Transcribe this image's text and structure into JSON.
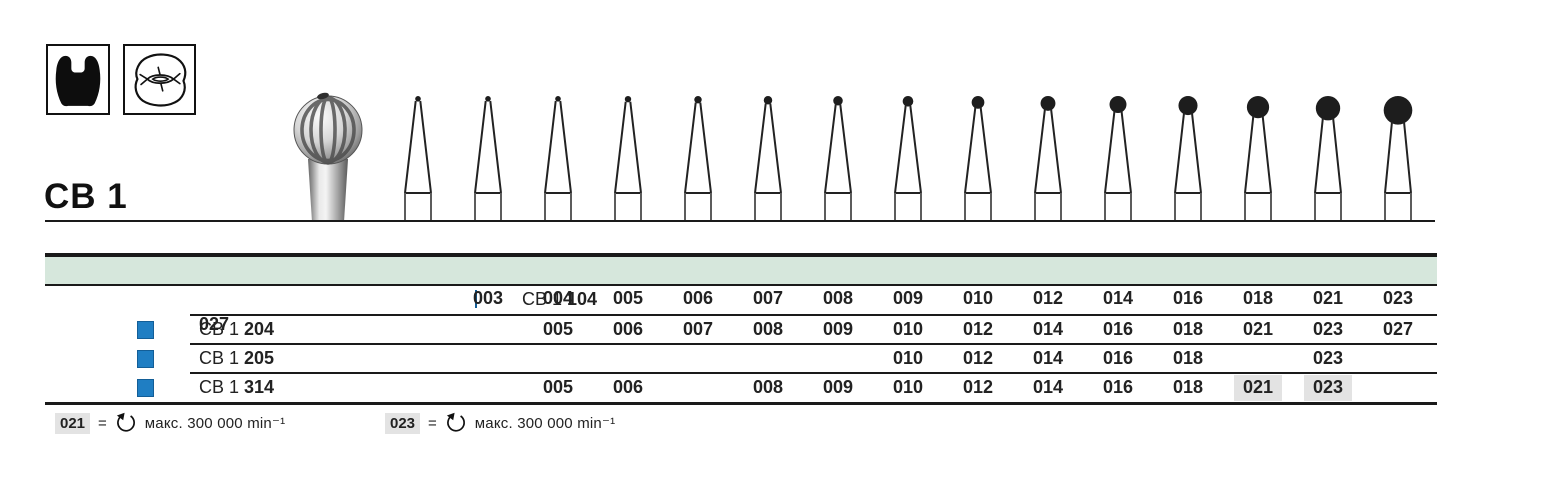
{
  "series": {
    "label": "CB 1"
  },
  "legend_icons": [
    {
      "name": "tooth-crown-icon"
    },
    {
      "name": "occlusal-surface-icon"
    }
  ],
  "table": {
    "sizes": [
      "003",
      "004",
      "005",
      "006",
      "007",
      "008",
      "009",
      "010",
      "012",
      "014",
      "016",
      "018",
      "021",
      "023",
      "027"
    ],
    "rows": [
      {
        "prefix": "CB 1",
        "code": "104",
        "available": [
          "003",
          "004",
          "005",
          "006",
          "007",
          "008",
          "009",
          "010",
          "012",
          "014",
          "016",
          "018",
          "021",
          "023",
          "027"
        ],
        "highlighted": []
      },
      {
        "prefix": "CB 1",
        "code": "204",
        "available": [
          "005",
          "006",
          "007",
          "008",
          "009",
          "010",
          "012",
          "014",
          "016",
          "018",
          "021",
          "023",
          "027"
        ],
        "highlighted": []
      },
      {
        "prefix": "CB 1",
        "code": "205",
        "available": [
          "010",
          "012",
          "014",
          "016",
          "018",
          "023"
        ],
        "highlighted": []
      },
      {
        "prefix": "CB 1",
        "code": "314",
        "available": [
          "005",
          "006",
          "008",
          "009",
          "010",
          "012",
          "014",
          "016",
          "018",
          "021",
          "023"
        ],
        "highlighted": [
          "021",
          "023"
        ]
      }
    ]
  },
  "footnotes": [
    {
      "size": "021",
      "eq": "=",
      "note": "макс. 300 000 min⁻¹"
    },
    {
      "size": "023",
      "eq": "=",
      "note": "макс. 300 000 min⁻¹"
    }
  ],
  "colors": {
    "header_band": "#d6e7dc",
    "checkbox_blue": "#1f7ec3",
    "highlight_gray": "#e3e3e3",
    "line": "#1a1a1a"
  }
}
